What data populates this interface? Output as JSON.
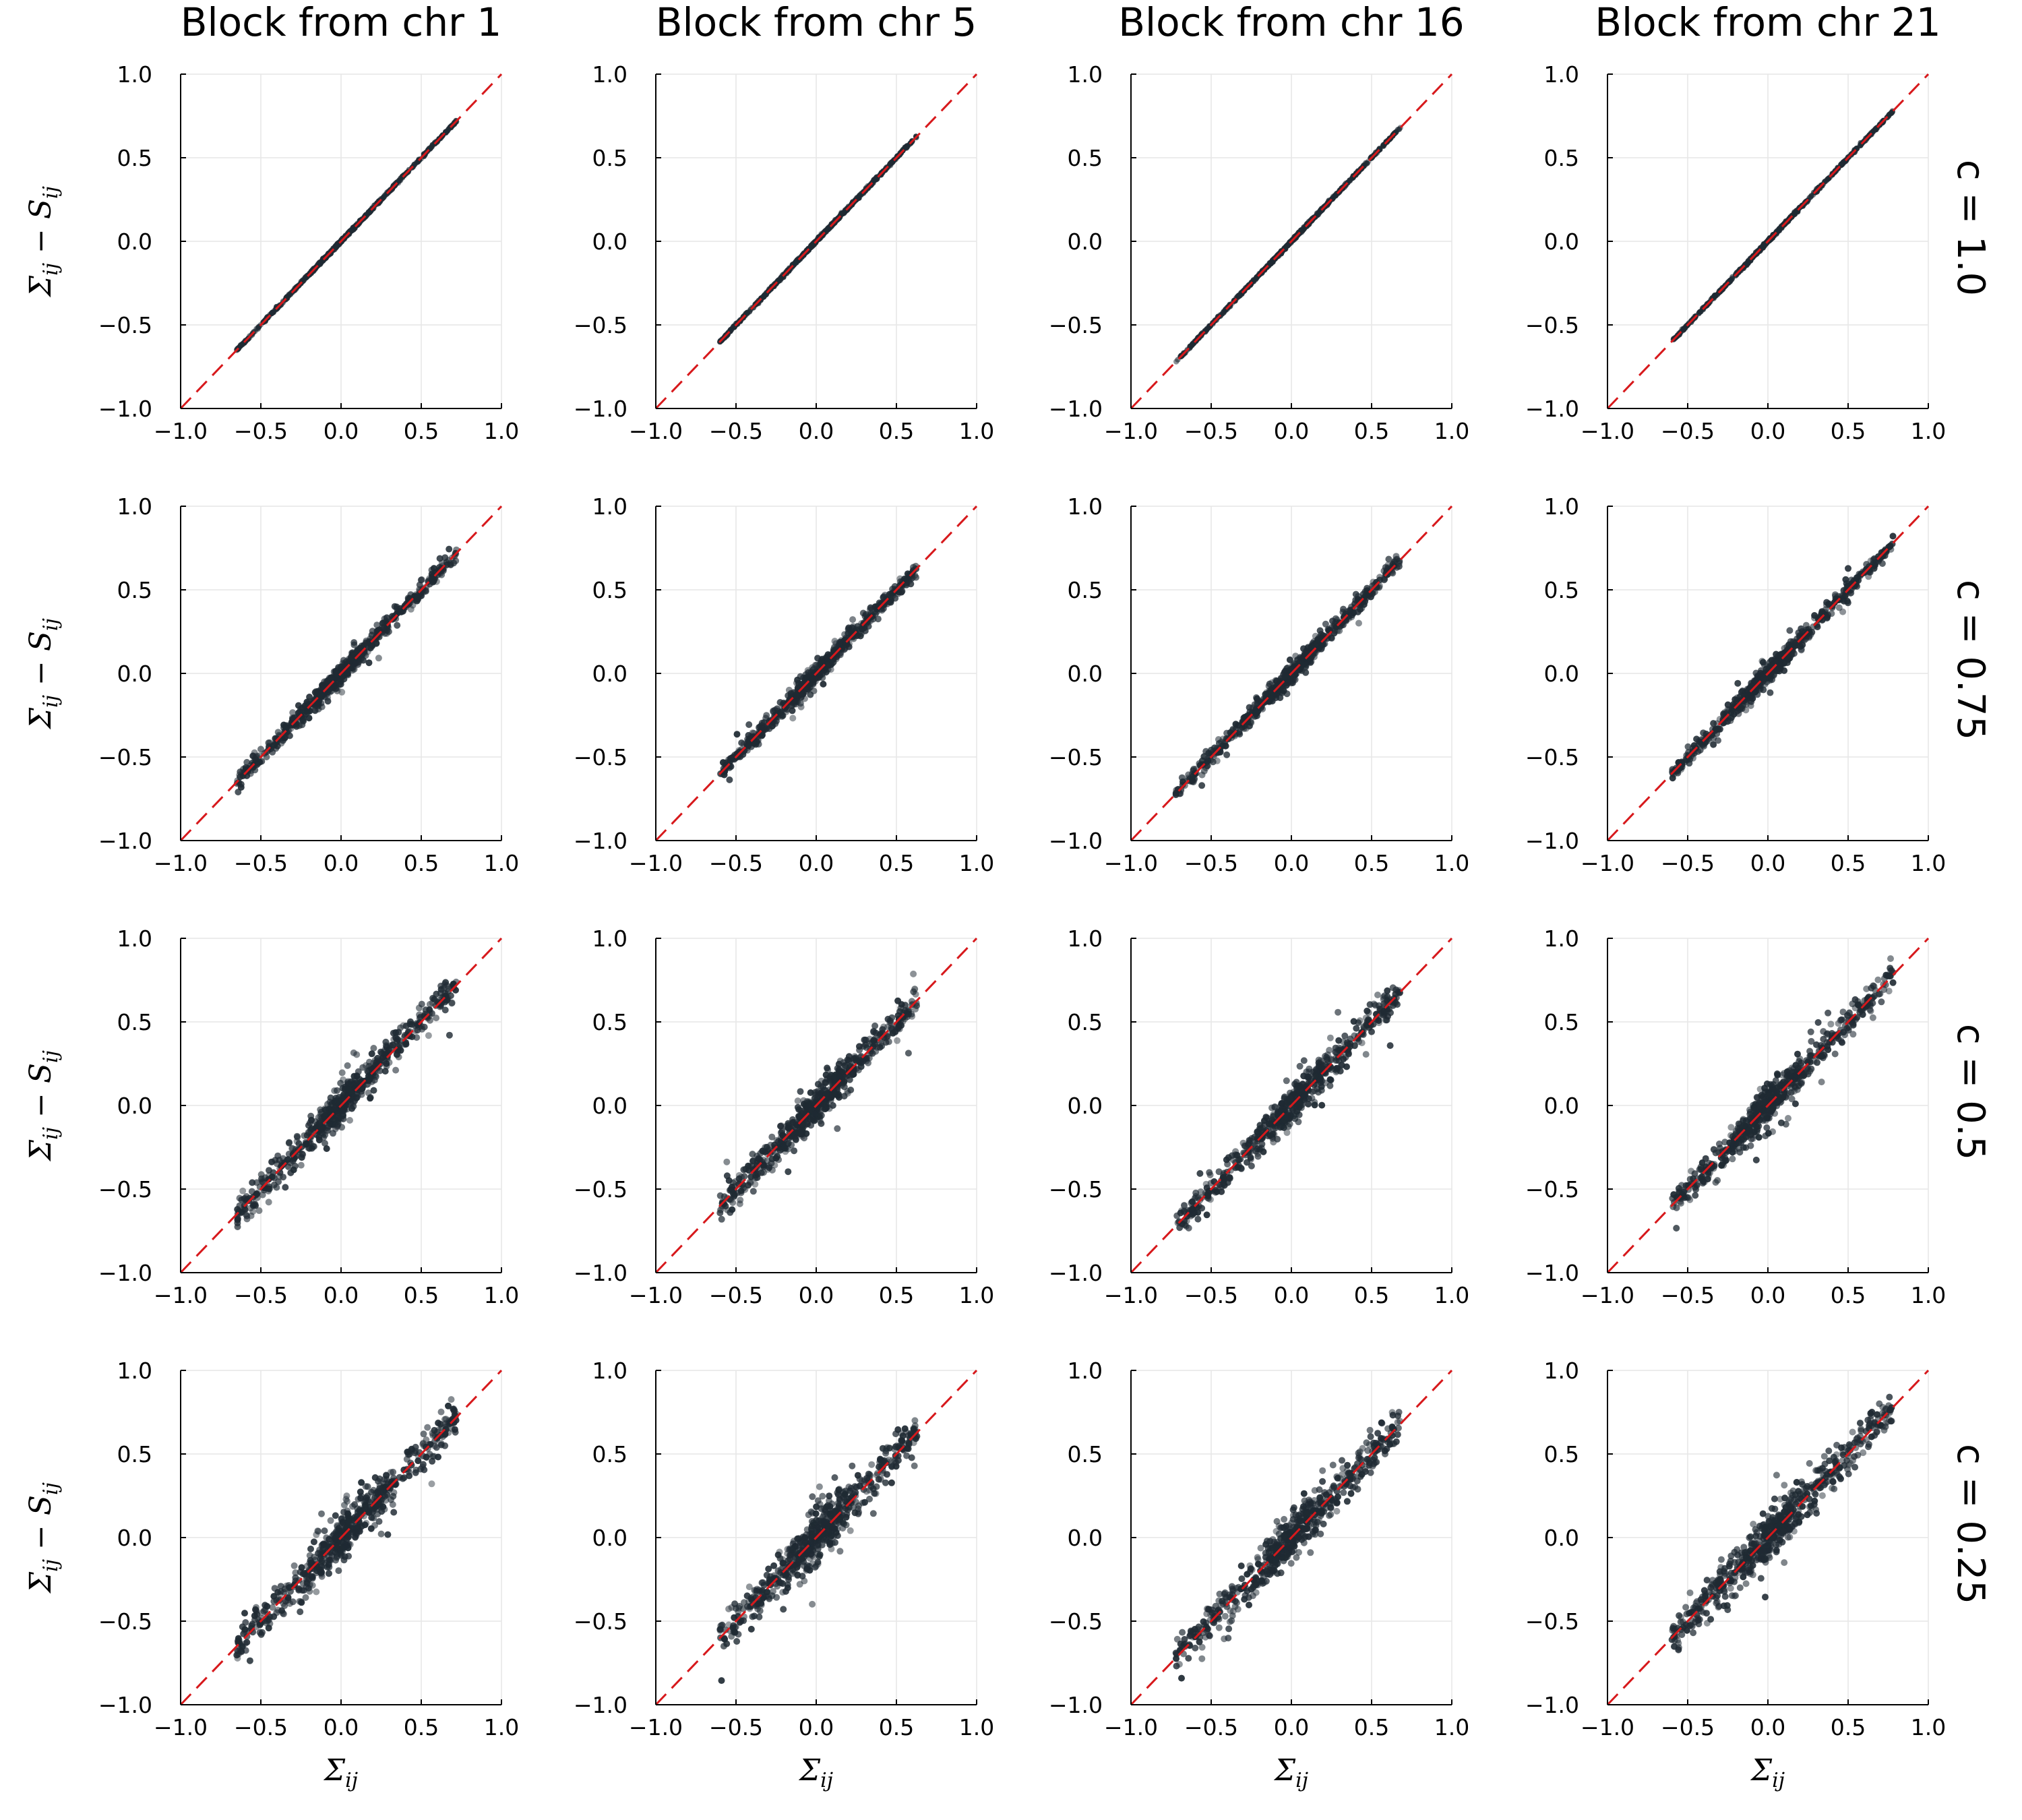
{
  "chart_data": {
    "type": "scatter",
    "layout": "4x4 grid of scatter panels",
    "column_titles": [
      "Block from chr 1",
      "Block from chr 5",
      "Block from chr 16",
      "Block from chr 21"
    ],
    "row_labels": [
      "c = 1.0",
      "c = 0.75",
      "c = 0.5",
      "c = 0.25"
    ],
    "row_c_values": [
      1.0,
      0.75,
      0.5,
      0.25
    ],
    "xlabel": {
      "symbol": "Σ",
      "sub": "ij"
    },
    "ylabel": {
      "sym1": "Σ",
      "sub1": "ij",
      "op": "−",
      "sym2": "S",
      "sub2": "ij"
    },
    "xlim": [
      -1.0,
      1.0
    ],
    "ylim": [
      -1.0,
      1.0
    ],
    "ticks": [
      -1.0,
      -0.5,
      0.0,
      0.5,
      1.0
    ],
    "tick_labels": [
      "−1.0",
      "−0.5",
      "0.0",
      "0.5",
      "1.0"
    ],
    "reference_line": {
      "style": "dashed",
      "from": [
        -1.0,
        -1.0
      ],
      "to": [
        1.0,
        1.0
      ],
      "color": "#d7191c"
    },
    "point_color": "#1f2a33",
    "columns": [
      {
        "name": "Block from chr 1",
        "x_range": [
          -0.65,
          0.72
        ]
      },
      {
        "name": "Block from chr 5",
        "x_range": [
          -0.6,
          0.63
        ]
      },
      {
        "name": "Block from chr 16",
        "x_range": [
          -0.72,
          0.68
        ]
      },
      {
        "name": "Block from chr 21",
        "x_range": [
          -0.6,
          0.78
        ]
      }
    ],
    "row_spread": [
      0.004,
      0.03,
      0.055,
      0.07
    ],
    "points_per_panel": 600,
    "grid": true
  }
}
